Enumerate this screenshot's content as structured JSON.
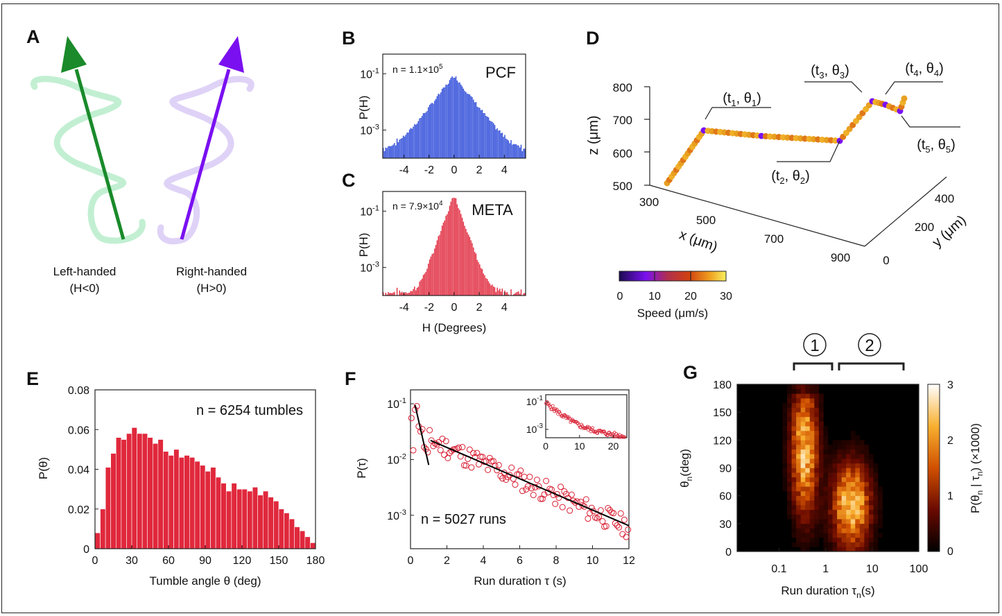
{
  "labels": {
    "A": "A",
    "B": "B",
    "C": "C",
    "D": "D",
    "E": "E",
    "F": "F",
    "G": "G"
  },
  "panelA": {
    "left": {
      "name": "Left-handed",
      "cond": "(H<0)",
      "color": "#1a8a2a",
      "helix": "#bfeed0"
    },
    "right": {
      "name": "Right-handed",
      "cond": "(H>0)",
      "color": "#7a10f0",
      "helix": "#ddd0f7"
    }
  },
  "panelB": {
    "type": "bar",
    "title": "PCF",
    "n_text": "n = 1.1×10",
    "n_exp": "5",
    "color": "#2a48d8",
    "ylabel": "P(H)",
    "yticks": [
      {
        "base": "10",
        "exp": "-1",
        "v": -1
      },
      {
        "base": "10",
        "exp": "-3",
        "v": -3
      }
    ],
    "xticks": [
      -4,
      -2,
      0,
      2,
      4
    ],
    "xlim": [
      -5.7,
      5.7
    ],
    "ylog_range": [
      -4,
      -0.3
    ],
    "peak": 0.09,
    "floor": 0.00018,
    "scale": 0.75
  },
  "panelC": {
    "type": "bar",
    "title": "META",
    "n_text": "n = 7.9×10",
    "n_exp": "4",
    "color": "#e0283c",
    "ylabel": "P(H)",
    "xlabel": "H (Degrees)",
    "yticks": [
      {
        "base": "10",
        "exp": "-1",
        "v": -1
      },
      {
        "base": "10",
        "exp": "-3",
        "v": -3
      }
    ],
    "xticks": [
      -4,
      -2,
      0,
      2,
      4
    ],
    "xlim": [
      -5.7,
      5.7
    ],
    "ylog_range": [
      -4,
      -0.3
    ],
    "peak": 0.4,
    "floor": 0.00013,
    "scale": 0.35
  },
  "panelD": {
    "zlabel": "z (μm)",
    "xlabel": "x (μm)",
    "ylabel": "y (μm)",
    "zticks": [
      "800",
      "700",
      "600",
      "500"
    ],
    "xticks": [
      "300",
      "500",
      "700",
      "900"
    ],
    "yticks": [
      "400",
      "200",
      "0"
    ],
    "annotations": [
      {
        "t": "t",
        "ts": "1",
        "th": "θ",
        "ths": "1"
      },
      {
        "t": "t",
        "ts": "2",
        "th": "θ",
        "ths": "2"
      },
      {
        "t": "t",
        "ts": "3",
        "th": "θ",
        "ths": "3"
      },
      {
        "t": "t",
        "ts": "4",
        "th": "θ",
        "ths": "4"
      },
      {
        "t": "t",
        "ts": "5",
        "th": "θ",
        "ths": "5"
      }
    ],
    "colorbar": {
      "label": "Speed (μm/s)",
      "ticks": [
        "0",
        "10",
        "20",
        "30"
      ]
    }
  },
  "panelE": {
    "type": "bar",
    "n_text": "n = 6254 tumbles",
    "color": "#e0283c",
    "xlabel": "Tumble angle θ (deg)",
    "ylabel": "P(θ)",
    "xticks": [
      0,
      30,
      60,
      90,
      120,
      150,
      180
    ],
    "yticks": [
      "0",
      "0.02",
      "0.04",
      "0.06",
      "0.08"
    ],
    "xlim": [
      0,
      180
    ],
    "ylim": [
      0,
      0.08
    ],
    "bin_width": 5,
    "values": [
      0.008,
      0.02,
      0.041,
      0.048,
      0.056,
      0.055,
      0.058,
      0.061,
      0.058,
      0.058,
      0.056,
      0.053,
      0.055,
      0.049,
      0.047,
      0.05,
      0.046,
      0.047,
      0.046,
      0.044,
      0.042,
      0.039,
      0.041,
      0.036,
      0.033,
      0.029,
      0.033,
      0.03,
      0.03,
      0.029,
      0.031,
      0.027,
      0.029,
      0.026,
      0.024,
      0.02,
      0.018,
      0.015,
      0.011,
      0.009,
      0.006,
      0.003
    ]
  },
  "panelF": {
    "type": "scatter",
    "n_text": "n = 5027 runs",
    "color": "#d81b30",
    "xlabel": "Run duration τ (s)",
    "ylabel": "P(τ)",
    "xticks": [
      0,
      2,
      4,
      6,
      8,
      10,
      12
    ],
    "yticks": [
      {
        "base": "10",
        "exp": "-1",
        "v": -1
      },
      {
        "base": "10",
        "exp": "-2",
        "v": -2
      },
      {
        "base": "10",
        "exp": "-3",
        "v": -3
      }
    ],
    "xlim": [
      0,
      12
    ],
    "ylog_range": [
      -3.6,
      -0.75
    ],
    "fit_short": [
      [
        0.25,
        0.095
      ],
      [
        1.0,
        0.008
      ]
    ],
    "fit_long": [
      [
        1.1,
        0.022
      ],
      [
        12,
        0.00065
      ]
    ],
    "inset": {
      "xticks": [
        0,
        10,
        20
      ],
      "yticks": [
        {
          "base": "10",
          "exp": "-1",
          "v": -1
        },
        {
          "base": "10",
          "exp": "-3",
          "v": -3
        }
      ],
      "xlim": [
        0,
        24
      ]
    }
  },
  "panelG": {
    "type": "heatmap",
    "xlabel": "Run duration τ",
    "xlabel_sub": "n",
    "xlabel_tail": "(s)",
    "ylabel": "θ",
    "ylabel_sub": "n",
    "ylabel_tail": "(deg)",
    "xticks": [
      "0.1",
      "1",
      "10",
      "100"
    ],
    "yticks": [
      "0",
      "30",
      "60",
      "90",
      "120",
      "150",
      "180"
    ],
    "xlog_range": [
      -1.9,
      2
    ],
    "ylim": [
      0,
      180
    ],
    "cb_label": "P(θ",
    "cb_label2": " | τ",
    "cb_label3": ") (×1000)",
    "cb_ticks": [
      "0",
      "1",
      "2",
      "3"
    ],
    "regions": [
      {
        "label": "1"
      },
      {
        "label": "2"
      }
    ]
  }
}
